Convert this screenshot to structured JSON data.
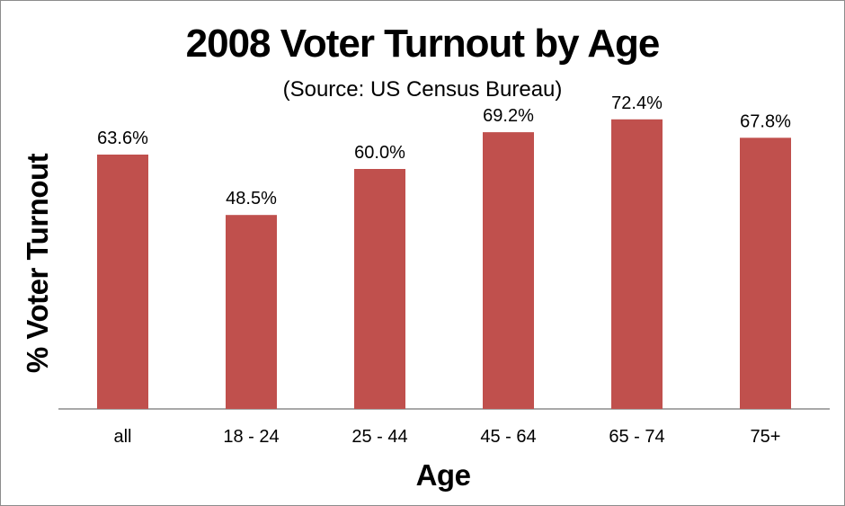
{
  "chart_data": {
    "type": "bar",
    "title": "2008 Voter Turnout by Age",
    "subtitle": "(Source: US Census Bureau)",
    "xlabel": "Age",
    "ylabel": "% Voter Turnout",
    "categories": [
      "all",
      "18 - 24",
      "25 - 44",
      "45 - 64",
      "65 - 74",
      "75+"
    ],
    "values": [
      63.6,
      48.5,
      60.0,
      69.2,
      72.4,
      67.8
    ],
    "data_labels": [
      "63.6%",
      "48.5%",
      "60.0%",
      "69.2%",
      "72.4%",
      "67.8%"
    ],
    "ylim": [
      0,
      100
    ],
    "grid": false,
    "legend": "none",
    "bar_color": "#c0504d",
    "axis_color": "#8c8c8c"
  }
}
